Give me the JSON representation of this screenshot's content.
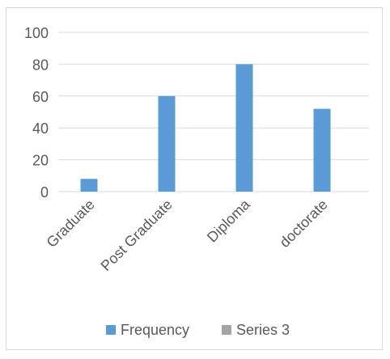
{
  "chart_data": {
    "type": "bar",
    "categories": [
      "Graduate",
      "Post Graduate",
      "Diploma",
      "doctorate"
    ],
    "series": [
      {
        "name": "Frequency",
        "values": [
          8,
          60,
          80,
          52
        ],
        "color": "#5b9bd5"
      },
      {
        "name": "Series 3",
        "values": [
          null,
          null,
          null,
          null
        ],
        "color": "#a5a5a5"
      }
    ],
    "yticks": [
      0,
      20,
      40,
      60,
      80,
      100
    ],
    "ylim": [
      0,
      100
    ],
    "grid": true,
    "legend_position": "bottom",
    "title": "",
    "xlabel": "",
    "ylabel": ""
  }
}
